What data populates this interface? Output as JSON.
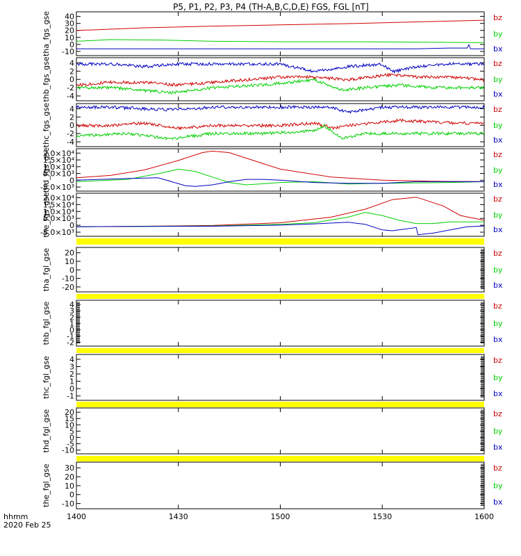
{
  "title": "P5, P1, P2, P3, P4 (TH-A,B,C,D,E) FGS, FGL [nT]",
  "footer": {
    "time_label": "hhmm",
    "date_label": "2020 Feb 25"
  },
  "x_axis": {
    "ticks": [
      "1400",
      "1430",
      "1500",
      "1530",
      "1600"
    ],
    "range_minutes": [
      0,
      120
    ]
  },
  "colors": {
    "bz": "#d00000",
    "by": "#00d000",
    "bx": "#0000c0",
    "fill_band": "#ffff00",
    "axis": "#000000"
  },
  "chart_data": [
    {
      "type": "line",
      "ylabel": "tha_fgs_gse",
      "ylim": [
        -10,
        42
      ],
      "yticks": [
        "-10",
        "0",
        "10",
        "20",
        "30",
        "40"
      ],
      "legend": [
        "bz",
        "by",
        "bx"
      ],
      "series": [
        {
          "name": "bz",
          "x": [
            0,
            5,
            20,
            40,
            60,
            80,
            100,
            120
          ],
          "values": [
            20,
            20.5,
            23,
            25,
            26.5,
            28,
            30,
            32
          ]
        },
        {
          "name": "by",
          "x": [
            0,
            10,
            25,
            40,
            60,
            80,
            100,
            115,
            120
          ],
          "values": [
            7,
            9,
            8.5,
            7,
            6.5,
            6.5,
            6,
            5.5,
            5.5
          ]
        },
        {
          "name": "bx",
          "x": [
            0,
            20,
            40,
            60,
            80,
            100,
            110,
            115,
            115.5,
            116,
            120
          ],
          "values": [
            -2,
            -2,
            -2,
            -2,
            -2,
            -2,
            -1,
            -1,
            3,
            -2,
            -2
          ]
        }
      ]
    },
    {
      "type": "line",
      "ylabel": "thb_fgs_gse",
      "ylim": [
        -4,
        4.2
      ],
      "yticks": [
        "-4",
        "-2",
        "0",
        "2",
        "4"
      ],
      "legend": [
        "bz",
        "by",
        "bx"
      ],
      "series": [
        {
          "name": "bz",
          "x": [
            0,
            10,
            20,
            30,
            40,
            50,
            60,
            70,
            80,
            93,
            100,
            110,
            120
          ],
          "values": [
            -1,
            -0.5,
            -0.5,
            -1,
            -0.5,
            0,
            0.5,
            0.5,
            0,
            1,
            0.5,
            0.5,
            0
          ]
        },
        {
          "name": "by",
          "x": [
            0,
            10,
            20,
            28,
            40,
            55,
            70,
            78,
            85,
            95,
            105,
            120
          ],
          "values": [
            -1.5,
            -1.5,
            -2,
            -2.5,
            -1.5,
            -1,
            0,
            -2,
            -1.5,
            -1,
            -1.5,
            -1.5
          ]
        },
        {
          "name": "bx",
          "x": [
            0,
            10,
            20,
            30,
            40,
            60,
            70,
            80,
            90,
            93,
            100,
            110,
            120
          ],
          "values": [
            3,
            3,
            2.5,
            3,
            3,
            3,
            1.5,
            2.5,
            3,
            1.5,
            2.5,
            3,
            3
          ]
        }
      ]
    },
    {
      "type": "line",
      "ylabel": "thc_fgs_gse",
      "ylim": [
        -4,
        4.2
      ],
      "yticks": [
        "-4",
        "-2",
        "0",
        "2",
        "4"
      ],
      "legend": [
        "bz",
        "by",
        "bx"
      ],
      "series": [
        {
          "name": "bz",
          "x": [
            0,
            10,
            20,
            30,
            40,
            60,
            70,
            76,
            80,
            95,
            110,
            120
          ],
          "values": [
            0,
            0,
            0.5,
            -0.5,
            0,
            0,
            0.5,
            -0.5,
            0,
            1,
            0.5,
            0.5
          ]
        },
        {
          "name": "by",
          "x": [
            0,
            15,
            28,
            40,
            55,
            70,
            73,
            78,
            85,
            100,
            110,
            120
          ],
          "values": [
            -2,
            -1.5,
            -2.5,
            -1.5,
            -1.5,
            -1,
            0,
            -2.5,
            -1.5,
            -1.5,
            -1.5,
            -1.5
          ]
        },
        {
          "name": "bx",
          "x": [
            0,
            10,
            28,
            40,
            60,
            75,
            80,
            90,
            100,
            110,
            120
          ],
          "values": [
            3.5,
            3.5,
            3,
            3.5,
            3.5,
            3.5,
            2.5,
            3.5,
            3.5,
            3.5,
            3.5
          ]
        }
      ]
    },
    {
      "type": "line",
      "ylabel": "thd_fgs_gse",
      "ylim": [
        -6000,
        21000
      ],
      "yticks": [
        "-5.0×10³",
        "0",
        "5.0×10³",
        "1.0×10⁴",
        "1.5×10⁴",
        "2.0×10⁴"
      ],
      "legend": [
        "bz",
        "by",
        "bx"
      ],
      "series": [
        {
          "name": "bz",
          "x": [
            0,
            10,
            20,
            30,
            37,
            40,
            45,
            50,
            60,
            75,
            90,
            105,
            120
          ],
          "values": [
            2500,
            4000,
            7500,
            13500,
            18500,
            19500,
            18500,
            15000,
            8000,
            3000,
            1000,
            300,
            0
          ]
        },
        {
          "name": "by",
          "x": [
            0,
            15,
            25,
            30,
            35,
            40,
            45,
            50,
            60,
            70,
            80,
            90,
            110,
            120
          ],
          "values": [
            0,
            1500,
            5500,
            8000,
            6500,
            3000,
            -500,
            -2000,
            -500,
            0,
            -1500,
            -1000,
            -500,
            0
          ]
        },
        {
          "name": "bx",
          "x": [
            0,
            15,
            24,
            28,
            32,
            35,
            40,
            45,
            50,
            55,
            60,
            70,
            80,
            90,
            100,
            110,
            120
          ],
          "values": [
            1000,
            2000,
            2500,
            0,
            -2500,
            -3000,
            -2000,
            0,
            1500,
            1500,
            1000,
            -500,
            -1000,
            -1000,
            0,
            0,
            0
          ]
        }
      ]
    },
    {
      "type": "line",
      "ylabel": "the_fgs_gse",
      "ylim": [
        -6000,
        21000
      ],
      "yticks": [
        "-5.0×10³",
        "0",
        "5.0×10³",
        "1.0×10⁴",
        "1.5×10⁴",
        "2.0×10⁴"
      ],
      "legend": [
        "bz",
        "by",
        "bx"
      ],
      "series": [
        {
          "name": "bz",
          "x": [
            0,
            20,
            40,
            60,
            75,
            85,
            93,
            100,
            108,
            113,
            120
          ],
          "values": [
            0,
            300,
            800,
            2500,
            6000,
            11000,
            17000,
            18500,
            13000,
            7000,
            4000
          ]
        },
        {
          "name": "by",
          "x": [
            0,
            40,
            60,
            70,
            80,
            85,
            90,
            95,
            100,
            105,
            110,
            120
          ],
          "values": [
            0,
            500,
            1500,
            2500,
            6000,
            9000,
            7000,
            4000,
            2000,
            2000,
            3000,
            3000
          ]
        },
        {
          "name": "bx",
          "x": [
            0,
            40,
            60,
            70,
            80,
            85,
            90,
            93,
            100,
            100.5,
            105,
            110,
            115,
            120
          ],
          "values": [
            0,
            300,
            1000,
            1800,
            2800,
            1500,
            -2000,
            -2500,
            -500,
            -5000,
            -4000,
            -2000,
            0,
            500
          ]
        }
      ]
    },
    {
      "type": "line",
      "ylabel": "tha_fgl_gse",
      "ylim": [
        -25,
        25
      ],
      "yticks": [
        "-20",
        "-10",
        "0",
        "10",
        "20"
      ],
      "legend": [
        "bz",
        "by",
        "bx"
      ],
      "series": []
    },
    {
      "type": "line",
      "ylabel": "thb_fgl_gse",
      "ylim": [
        -2.5,
        4.5
      ],
      "yticks": [
        "-2",
        "-1",
        "0",
        "1",
        "2",
        "3",
        "4"
      ],
      "legend": [
        "bz",
        "by",
        "bx"
      ],
      "series": []
    },
    {
      "type": "line",
      "ylabel": "thc_fgl_gse",
      "ylim": [
        -1.5,
        4.5
      ],
      "yticks": [
        "-1",
        "0",
        "1",
        "2",
        "3",
        "4"
      ],
      "legend": [
        "bz",
        "by",
        "bx"
      ],
      "series": []
    },
    {
      "type": "line",
      "ylabel": "thd_fgl_gse",
      "ylim": [
        -12,
        22
      ],
      "yticks": [
        "-10",
        "-5",
        "0",
        "5",
        "10",
        "15",
        "20"
      ],
      "legend": [
        "bz",
        "by",
        "bx"
      ],
      "series": []
    },
    {
      "type": "line",
      "ylabel": "the_fgl_gse",
      "ylim": [
        -14,
        36
      ],
      "yticks": [
        "-10",
        "0",
        "10",
        "20",
        "30"
      ],
      "legend": [
        "bz",
        "by",
        "bx"
      ],
      "series": []
    }
  ]
}
